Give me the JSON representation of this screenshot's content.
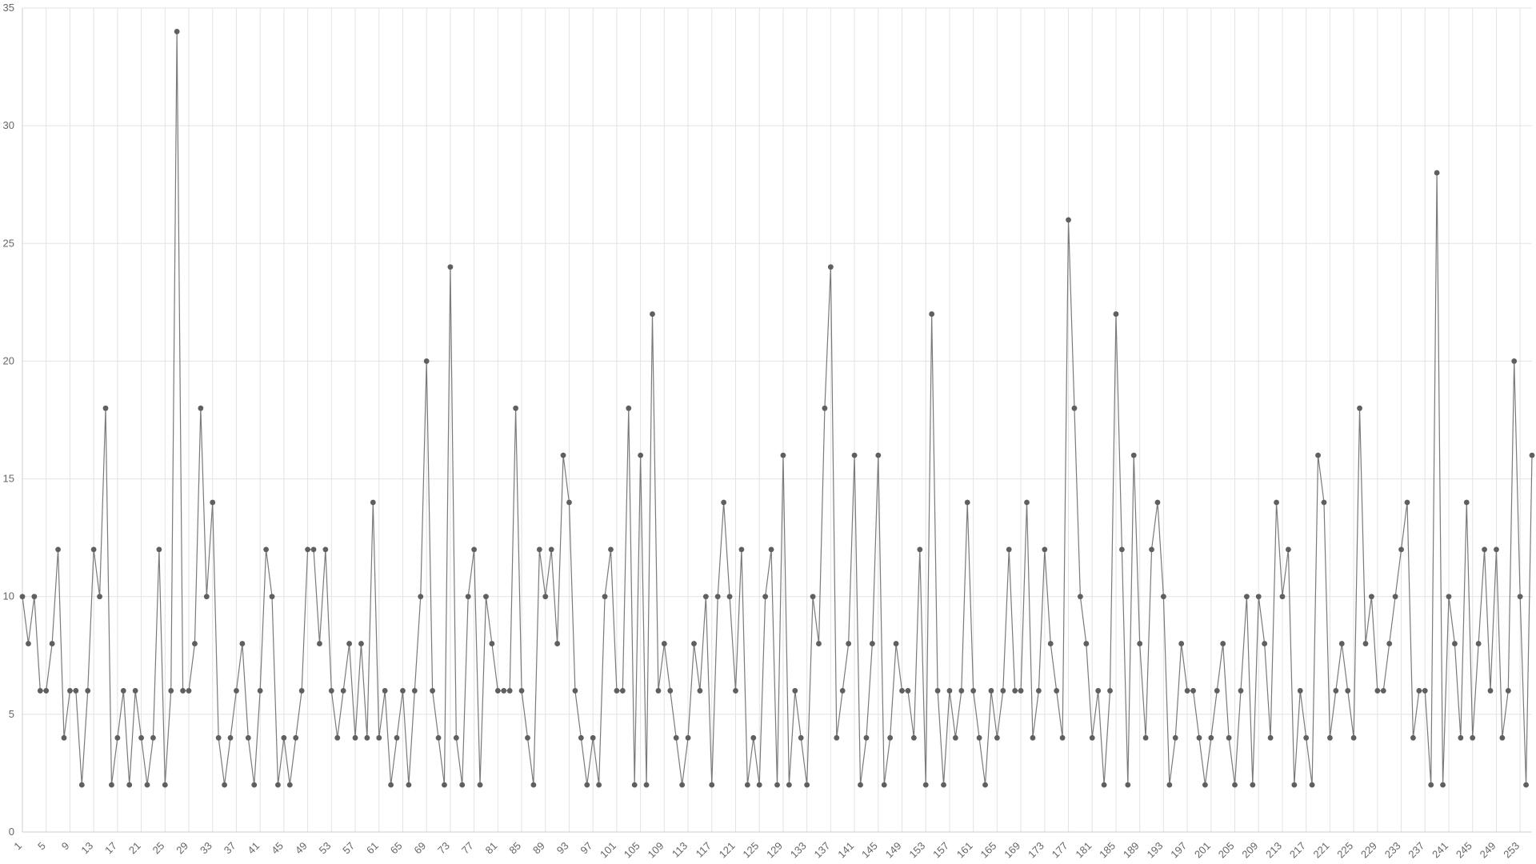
{
  "chart_data": {
    "type": "line",
    "title": "",
    "xlabel": "",
    "ylabel": "",
    "ylim": [
      0,
      35
    ],
    "y_ticks": [
      0,
      5,
      10,
      15,
      20,
      25,
      30,
      35
    ],
    "x_tick_step": 4,
    "grid": true,
    "series": [
      {
        "values": [
          10,
          8,
          10,
          6,
          6,
          8,
          12,
          4,
          6,
          6,
          2,
          6,
          12,
          10,
          18,
          2,
          4,
          6,
          2,
          6,
          4,
          2,
          4,
          12,
          2,
          6,
          34,
          6,
          6,
          8,
          18,
          10,
          14,
          4,
          2,
          4,
          6,
          8,
          4,
          2,
          6,
          12,
          10,
          2,
          4,
          2,
          4,
          6,
          12,
          12,
          8,
          12,
          6,
          4,
          6,
          8,
          4,
          8,
          4,
          14,
          4,
          6,
          2,
          4,
          6,
          2,
          6,
          10,
          20,
          6,
          4,
          2,
          24,
          4,
          2,
          10,
          12,
          2,
          10,
          8,
          6,
          6,
          6,
          18,
          6,
          4,
          2,
          12,
          10,
          12,
          8,
          16,
          14,
          6,
          4,
          2,
          4,
          2,
          10,
          12,
          6,
          6,
          18,
          2,
          16,
          2,
          22,
          6,
          8,
          6,
          4,
          2,
          4,
          8,
          6,
          10,
          2,
          10,
          14,
          10,
          6,
          12,
          2,
          4,
          2,
          10,
          12,
          2,
          16,
          2,
          6,
          4,
          2,
          10,
          8,
          18,
          24,
          4,
          6,
          8,
          16,
          2,
          4,
          8,
          16,
          2,
          4,
          8,
          6,
          6,
          4,
          12,
          2,
          22,
          6,
          2,
          6,
          4,
          6,
          14,
          6,
          4,
          2,
          6,
          4,
          6,
          12,
          6,
          6,
          14,
          4,
          6,
          12,
          8,
          6,
          4,
          26,
          18,
          10,
          8,
          4,
          6,
          2,
          6,
          22,
          12,
          2,
          16,
          8,
          4,
          12,
          14,
          10,
          2,
          4,
          8,
          6,
          6,
          4,
          2,
          4,
          6,
          8,
          4,
          2,
          6,
          10,
          2,
          10,
          8,
          4,
          14,
          10,
          12,
          2,
          6,
          4,
          2,
          16,
          14,
          4,
          6,
          8,
          6,
          4,
          18,
          8,
          10,
          6,
          6,
          8,
          10,
          12,
          14,
          4,
          6,
          6,
          2,
          28,
          2,
          10,
          8,
          4,
          14,
          4,
          8,
          12,
          6,
          12,
          4,
          6,
          20,
          10,
          2,
          16
        ]
      }
    ]
  }
}
